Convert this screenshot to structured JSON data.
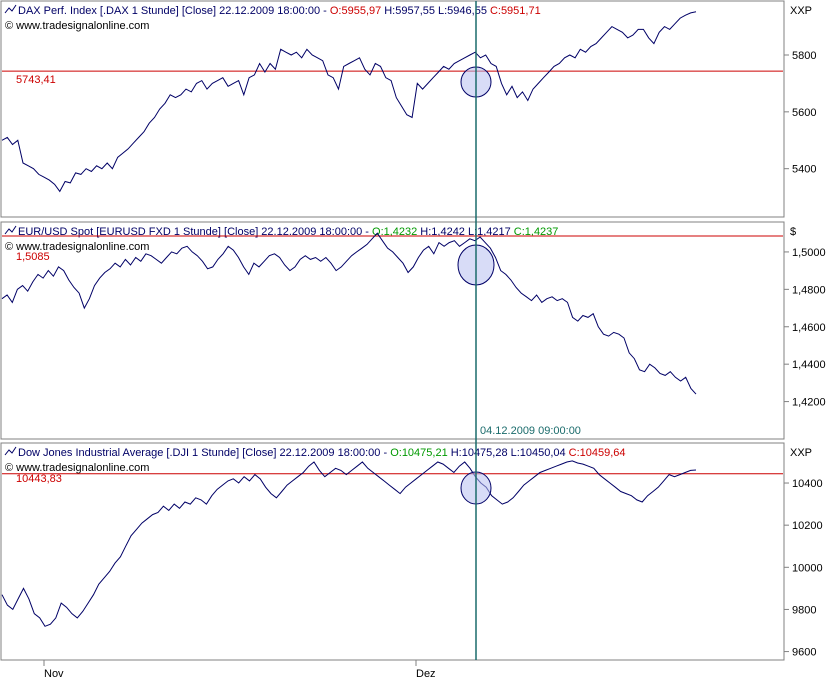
{
  "watermark": "© www.tradesignalonline.com",
  "crosshair_label": "04.12.2009 09:00:00",
  "x_axis": {
    "ticks": [
      "Nov",
      "Dez"
    ]
  },
  "colors": {
    "frame": "#808080",
    "series": "#000066",
    "level": "#cc0000",
    "crosshair": "#1a6b6b",
    "circle_fill": "#b8bff0",
    "label_dark": "#000066",
    "open_close": "#cc0000",
    "open_close_up": "#009900"
  },
  "chart_data": [
    {
      "type": "line",
      "header": {
        "name": "DAX Perf. Index [.DAX  1 Stunde] [Close] 22.12.2009 18:00:00 - ",
        "open": "O:5955,97",
        "high": "H:5957,55",
        "low": "L:5946,55",
        "close": "C:5951,71",
        "open_color": "#cc0000",
        "close_color": "#cc0000"
      },
      "unit": "XXP",
      "ylim": [
        5230,
        5990
      ],
      "yticks": [
        "5800",
        "5600",
        "5400"
      ],
      "ytick_values": [
        5800,
        5600,
        5400
      ],
      "level": 5743.41,
      "level_label": "5743,41",
      "series": [
        {
          "values": [
            5500,
            5510,
            5485,
            5500,
            5420,
            5410,
            5400,
            5380,
            5370,
            5360,
            5345,
            5320,
            5355,
            5350,
            5385,
            5380,
            5400,
            5390,
            5410,
            5400,
            5420,
            5400,
            5440,
            5455,
            5470,
            5490,
            5510,
            5530,
            5560,
            5580,
            5610,
            5630,
            5660,
            5650,
            5660,
            5680,
            5670,
            5700,
            5710,
            5680,
            5700,
            5710,
            5720,
            5690,
            5700,
            5710,
            5660,
            5720,
            5730,
            5770,
            5740,
            5770,
            5750,
            5820,
            5810,
            5800,
            5810,
            5790,
            5820,
            5800,
            5790,
            5780,
            5730,
            5720,
            5680,
            5760,
            5770,
            5780,
            5790,
            5750,
            5730,
            5770,
            5760,
            5720,
            5710,
            5650,
            5620,
            5590,
            5580,
            5700,
            5680,
            5700,
            5720,
            5740,
            5760,
            5750,
            5770,
            5780,
            5790,
            5800,
            5810,
            5790,
            5800,
            5770,
            5760,
            5700,
            5660,
            5690,
            5650,
            5670,
            5640,
            5680,
            5700,
            5720,
            5740,
            5760,
            5770,
            5790,
            5800,
            5790,
            5820,
            5810,
            5830,
            5840,
            5860,
            5880,
            5900,
            5890,
            5880,
            5860,
            5870,
            5890,
            5890,
            5860,
            5840,
            5880,
            5900,
            5890,
            5910,
            5930,
            5940,
            5948,
            5952
          ]
        }
      ]
    },
    {
      "type": "line",
      "header": {
        "name": "EUR/USD Spot [EURUSD FXD  1 Stunde] [Close] 22.12.2009 18:00:00 - ",
        "open": "O:1,4232",
        "high": "H:1,4242",
        "low": "L:1,4217",
        "close": "C:1,4237",
        "open_color": "#009900",
        "close_color": "#009900"
      },
      "unit": "$",
      "ylim": [
        1.4,
        1.516
      ],
      "yticks": [
        "1,5000",
        "1,4800",
        "1,4600",
        "1,4400",
        "1,4200"
      ],
      "ytick_values": [
        1.5,
        1.48,
        1.46,
        1.44,
        1.42
      ],
      "level": 1.5085,
      "level_label": "1,5085",
      "series": [
        {
          "values": [
            1.475,
            1.477,
            1.473,
            1.48,
            1.482,
            1.479,
            1.484,
            1.488,
            1.486,
            1.49,
            1.487,
            1.492,
            1.49,
            1.485,
            1.481,
            1.478,
            1.47,
            1.475,
            1.482,
            1.486,
            1.489,
            1.491,
            1.494,
            1.492,
            1.496,
            1.493,
            1.497,
            1.495,
            1.499,
            1.498,
            1.496,
            1.494,
            1.497,
            1.5,
            1.499,
            1.502,
            1.503,
            1.5,
            1.498,
            1.495,
            1.491,
            1.492,
            1.496,
            1.499,
            1.503,
            1.501,
            1.497,
            1.492,
            1.488,
            1.494,
            1.492,
            1.495,
            1.498,
            1.499,
            1.497,
            1.493,
            1.49,
            1.492,
            1.496,
            1.498,
            1.496,
            1.497,
            1.495,
            1.497,
            1.494,
            1.49,
            1.492,
            1.495,
            1.498,
            1.5,
            1.502,
            1.504,
            1.507,
            1.51,
            1.506,
            1.502,
            1.5,
            1.497,
            1.494,
            1.489,
            1.492,
            1.497,
            1.501,
            1.503,
            1.499,
            1.505,
            1.503,
            1.505,
            1.506,
            1.503,
            1.505,
            1.507,
            1.506,
            1.508,
            1.505,
            1.502,
            1.497,
            1.49,
            1.488,
            1.485,
            1.481,
            1.478,
            1.476,
            1.474,
            1.477,
            1.473,
            1.475,
            1.476,
            1.474,
            1.475,
            1.473,
            1.465,
            1.463,
            1.466,
            1.465,
            1.467,
            1.46,
            1.456,
            1.455,
            1.457,
            1.456,
            1.454,
            1.446,
            1.443,
            1.437,
            1.436,
            1.44,
            1.438,
            1.435,
            1.434,
            1.436,
            1.433,
            1.431,
            1.433,
            1.427,
            1.424
          ]
        }
      ]
    },
    {
      "type": "line",
      "header": {
        "name": "Dow Jones Industrial Average [.DJI  1 Stunde] [Close] 22.12.2009 18:00:00 - ",
        "open": "O:10475,21",
        "high": "H:10475,28",
        "low": "L:10450,04",
        "close": "C:10459,64",
        "open_color": "#009900",
        "close_color": "#cc0000"
      },
      "unit": "XXP",
      "ylim": [
        9560,
        10590
      ],
      "yticks": [
        "10400",
        "10200",
        "10000",
        "9800",
        "9600"
      ],
      "ytick_values": [
        10400,
        10200,
        10000,
        9800,
        9600
      ],
      "level": 10443.83,
      "level_label": "10443,83",
      "series": [
        {
          "values": [
            9870,
            9820,
            9800,
            9850,
            9900,
            9850,
            9780,
            9760,
            9720,
            9730,
            9760,
            9830,
            9810,
            9780,
            9760,
            9790,
            9830,
            9870,
            9920,
            9950,
            9980,
            10020,
            10050,
            10100,
            10150,
            10180,
            10210,
            10230,
            10250,
            10260,
            10290,
            10270,
            10300,
            10280,
            10310,
            10300,
            10330,
            10320,
            10300,
            10340,
            10370,
            10390,
            10410,
            10420,
            10400,
            10430,
            10410,
            10440,
            10420,
            10380,
            10350,
            10330,
            10360,
            10390,
            10410,
            10430,
            10450,
            10480,
            10500,
            10460,
            10430,
            10450,
            10470,
            10460,
            10440,
            10460,
            10480,
            10500,
            10470,
            10450,
            10430,
            10410,
            10390,
            10370,
            10350,
            10380,
            10400,
            10420,
            10440,
            10460,
            10480,
            10500,
            10490,
            10470,
            10450,
            10480,
            10500,
            10470,
            10430,
            10400,
            10380,
            10340,
            10320,
            10300,
            10310,
            10330,
            10360,
            10390,
            10410,
            10430,
            10450,
            10460,
            10470,
            10480,
            10490,
            10500,
            10505,
            10495,
            10490,
            10480,
            10470,
            10440,
            10420,
            10400,
            10380,
            10360,
            10350,
            10340,
            10320,
            10310,
            10340,
            10360,
            10380,
            10410,
            10440,
            10430,
            10440,
            10450,
            10460,
            10462
          ]
        }
      ]
    }
  ]
}
